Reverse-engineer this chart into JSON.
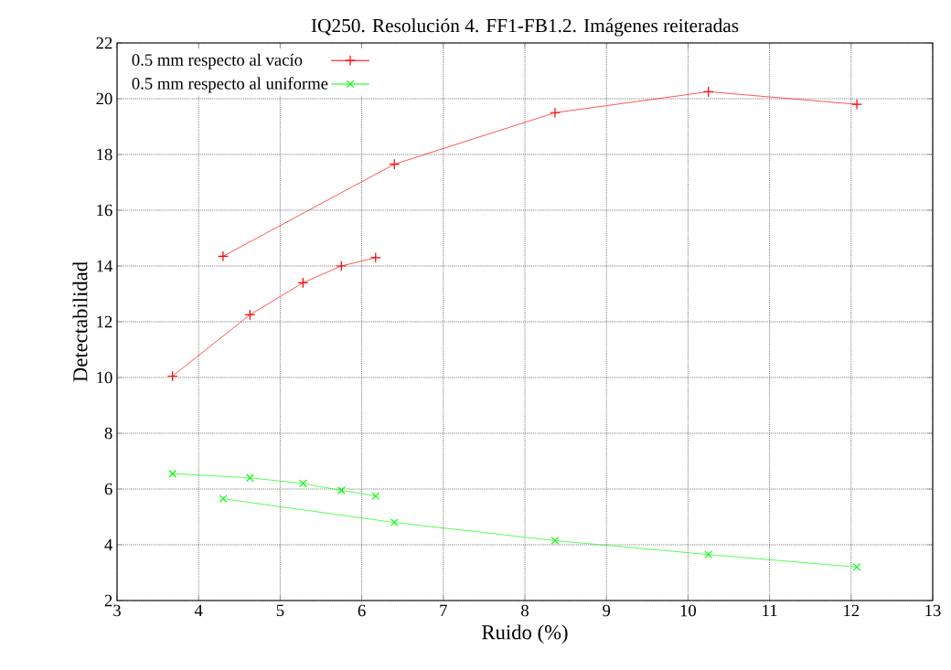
{
  "chart_data": {
    "type": "line",
    "title": "IQ250. Resolución 4. FF1-FB1.2. Imágenes reiteradas",
    "xlabel": "Ruido (%)",
    "ylabel": "Detectabilidad",
    "series": [
      {
        "name": "0.5 mm respecto al vacío",
        "color": "#ff0000",
        "marker": "plus",
        "line_style": "solid",
        "x": [
          3.68,
          4.63,
          5.28,
          5.75,
          6.17,
          null,
          4.3,
          6.4,
          8.37,
          10.25,
          12.07
        ],
        "values": [
          10.05,
          12.25,
          13.4,
          14.0,
          14.3,
          null,
          14.35,
          17.65,
          19.5,
          20.25,
          19.8
        ]
      },
      {
        "name": "0.5 mm respecto al uniforme",
        "color": "#00ff00",
        "marker": "cross",
        "line_style": "solid",
        "x": [
          3.68,
          4.63,
          5.28,
          5.75,
          6.17,
          null,
          4.3,
          6.4,
          8.37,
          10.25,
          12.07
        ],
        "values": [
          6.55,
          6.4,
          6.2,
          5.95,
          5.75,
          null,
          5.65,
          4.8,
          4.15,
          3.65,
          3.2
        ]
      }
    ],
    "xlim": [
      3,
      13
    ],
    "ylim": [
      2,
      22
    ],
    "xticks": [
      3,
      4,
      5,
      6,
      7,
      8,
      9,
      10,
      11,
      12,
      13
    ],
    "yticks": [
      2,
      4,
      6,
      8,
      10,
      12,
      14,
      16,
      18,
      20,
      22
    ],
    "grid": true,
    "legend": "top left"
  }
}
